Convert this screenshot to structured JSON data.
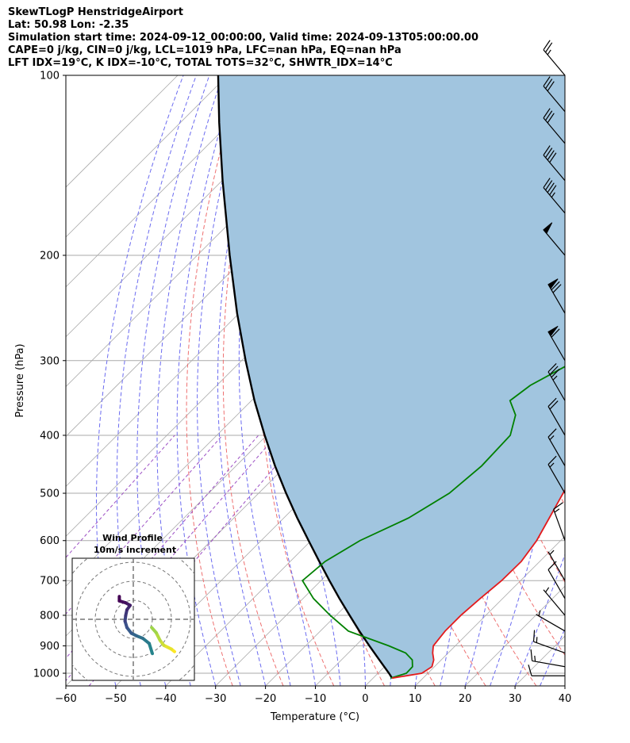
{
  "header": {
    "line1": "SkewTLogP HenstridgeAirport",
    "line2": "Lat: 50.98   Lon: -2.35",
    "line3": "Simulation start time: 2024-09-12_00:00:00, Valid time: 2024-09-13T05:00:00.00",
    "line4": "CAPE=0 j/kg, CIN=0 j/kg, LCL=1019 hPa, LFC=nan hPa, EQ=nan hPa",
    "line5": "LFT IDX=19°C, K IDX=-10°C, TOTAL TOTS=32°C, SHWTR_IDX=14°C"
  },
  "chart_data": {
    "type": "line",
    "title": "SkewTLogP HenstridgeAirport",
    "xlabel": "Temperature (°C)",
    "ylabel": "Pressure (hPa)",
    "xlim": [
      -60,
      40
    ],
    "ylim": [
      1050,
      100
    ],
    "y_scale": "log",
    "x_ticks": [
      -60,
      -50,
      -40,
      -30,
      -20,
      -10,
      0,
      10,
      20,
      30,
      40
    ],
    "y_ticks": [
      100,
      200,
      300,
      400,
      500,
      600,
      700,
      800,
      900,
      1000
    ],
    "x_tick_labels": [
      "−60",
      "−50",
      "−40",
      "−30",
      "−20",
      "−10",
      "0",
      "10",
      "20",
      "30",
      "40"
    ],
    "y_tick_labels": [
      "100",
      "200",
      "300",
      "400",
      "500",
      "600",
      "700",
      "800",
      "900",
      "1000"
    ],
    "grid": true,
    "series": [
      {
        "name": "temperature",
        "color": "#e31a1c",
        "points": [
          [
            1019,
            3.8
          ],
          [
            1000,
            8.8
          ],
          [
            975,
            9.5
          ],
          [
            950,
            8.5
          ],
          [
            925,
            6.9
          ],
          [
            900,
            5.6
          ],
          [
            850,
            5.0
          ],
          [
            800,
            5.0
          ],
          [
            750,
            5.5
          ],
          [
            700,
            6.2
          ],
          [
            650,
            6.3
          ],
          [
            600,
            5.2
          ],
          [
            550,
            3.2
          ],
          [
            500,
            1.0
          ],
          [
            450,
            -1.3
          ],
          [
            400,
            -2.7
          ],
          [
            350,
            -1.6
          ],
          [
            300,
            -3.2
          ],
          [
            270,
            -5.0
          ],
          [
            250,
            -6.0
          ],
          [
            230,
            -5.2
          ],
          [
            220,
            -4.7
          ],
          [
            210,
            -2.5
          ],
          [
            200,
            -0.5
          ],
          [
            185,
            0.5
          ],
          [
            170,
            0.5
          ],
          [
            155,
            1.0
          ],
          [
            140,
            2.0
          ],
          [
            125,
            3.0
          ],
          [
            110,
            5.0
          ],
          [
            100,
            7.0
          ]
        ]
      },
      {
        "name": "dewpoint",
        "color": "#008000",
        "points": [
          [
            1019,
            3.5
          ],
          [
            1000,
            5.7
          ],
          [
            975,
            5.6
          ],
          [
            950,
            4.2
          ],
          [
            925,
            1.5
          ],
          [
            900,
            -3.3
          ],
          [
            850,
            -14.4
          ],
          [
            800,
            -21.2
          ],
          [
            750,
            -27.9
          ],
          [
            700,
            -33.7
          ],
          [
            650,
            -33.0
          ],
          [
            600,
            -30.2
          ],
          [
            550,
            -25.0
          ],
          [
            500,
            -21.8
          ],
          [
            450,
            -20.8
          ],
          [
            400,
            -21.2
          ],
          [
            370,
            -24.2
          ],
          [
            350,
            -28.2
          ],
          [
            330,
            -27.2
          ],
          [
            300,
            -23.0
          ],
          [
            270,
            -20.0
          ],
          [
            250,
            -20.3
          ],
          [
            230,
            -19.5
          ],
          [
            215,
            -18.0
          ],
          [
            200,
            -16.7
          ],
          [
            185,
            -16.5
          ],
          [
            170,
            -15.5
          ],
          [
            155,
            -14.5
          ],
          [
            140,
            -13.5
          ],
          [
            125,
            -11.0
          ],
          [
            110,
            -9.0
          ],
          [
            100,
            -7.0
          ]
        ]
      },
      {
        "name": "parcel",
        "color": "#000000",
        "points": [
          [
            1019,
            3.8
          ],
          [
            1000,
            2.2
          ],
          [
            950,
            -2.4
          ],
          [
            900,
            -7.2
          ],
          [
            850,
            -12.2
          ],
          [
            800,
            -17.3
          ],
          [
            750,
            -22.7
          ],
          [
            700,
            -28.3
          ],
          [
            650,
            -34.2
          ],
          [
            600,
            -40.5
          ],
          [
            550,
            -47.3
          ],
          [
            500,
            -54.5
          ],
          [
            450,
            -62.2
          ],
          [
            400,
            -70.4
          ],
          [
            350,
            -79.4
          ],
          [
            300,
            -89.2
          ],
          [
            250,
            -100.4
          ],
          [
            200,
            -113.5
          ],
          [
            150,
            -129.9
          ],
          [
            120,
            -142.2
          ],
          [
            100,
            -151.9
          ]
        ]
      }
    ],
    "wind_barbs": [
      {
        "p": 1010,
        "speed_kt": 10,
        "dir": 270
      },
      {
        "p": 975,
        "speed_kt": 15,
        "dir": 280
      },
      {
        "p": 925,
        "speed_kt": 15,
        "dir": 290
      },
      {
        "p": 850,
        "speed_kt": 5,
        "dir": 300
      },
      {
        "p": 800,
        "speed_kt": 5,
        "dir": 320
      },
      {
        "p": 750,
        "speed_kt": 10,
        "dir": 330
      },
      {
        "p": 700,
        "speed_kt": 5,
        "dir": 330
      },
      {
        "p": 600,
        "speed_kt": 15,
        "dir": 340
      },
      {
        "p": 500,
        "speed_kt": 15,
        "dir": 330
      },
      {
        "p": 450,
        "speed_kt": 15,
        "dir": 330
      },
      {
        "p": 400,
        "speed_kt": 20,
        "dir": 330
      },
      {
        "p": 350,
        "speed_kt": 35,
        "dir": 330
      },
      {
        "p": 300,
        "speed_kt": 60,
        "dir": 330
      },
      {
        "p": 250,
        "speed_kt": 70,
        "dir": 330
      },
      {
        "p": 200,
        "speed_kt": 50,
        "dir": 320
      },
      {
        "p": 170,
        "speed_kt": 45,
        "dir": 320
      },
      {
        "p": 150,
        "speed_kt": 40,
        "dir": 320
      },
      {
        "p": 130,
        "speed_kt": 30,
        "dir": 320
      },
      {
        "p": 115,
        "speed_kt": 30,
        "dir": 320
      },
      {
        "p": 100,
        "speed_kt": 25,
        "dir": 320
      }
    ],
    "inset": {
      "title_line1": "Wind Profile",
      "title_line2": "10m/s increment",
      "colormap": "viridis",
      "hodograph": [
        [
          3.0,
          -5.4
        ],
        [
          2.5,
          -3.8
        ],
        [
          1.5,
          -3.0
        ],
        [
          0.5,
          -2.6
        ],
        [
          -0.3,
          -2.2
        ],
        [
          -1.0,
          -1.3
        ],
        [
          -1.3,
          -0.3
        ],
        [
          -1.2,
          0.6
        ],
        [
          -1.0,
          1.5
        ],
        [
          -0.5,
          2.2
        ],
        [
          -1.2,
          2.6
        ],
        [
          -2.2,
          2.9
        ],
        [
          -2.2,
          3.6
        ]
      ],
      "hodograph_b": [
        [
          6.5,
          -5.1
        ],
        [
          6.0,
          -4.7
        ],
        [
          4.8,
          -4.1
        ],
        [
          4.2,
          -3.3
        ],
        [
          3.6,
          -2.1
        ],
        [
          2.9,
          -1.3
        ]
      ]
    },
    "colors": {
      "cape_fill": "#a1c5df",
      "isotherm_grid": "#aaaaaa",
      "dry_adiabat": "#ee7070",
      "moist_adiabat": "#6b6bf0",
      "mixing_ratio": "#9c4fc4"
    }
  }
}
